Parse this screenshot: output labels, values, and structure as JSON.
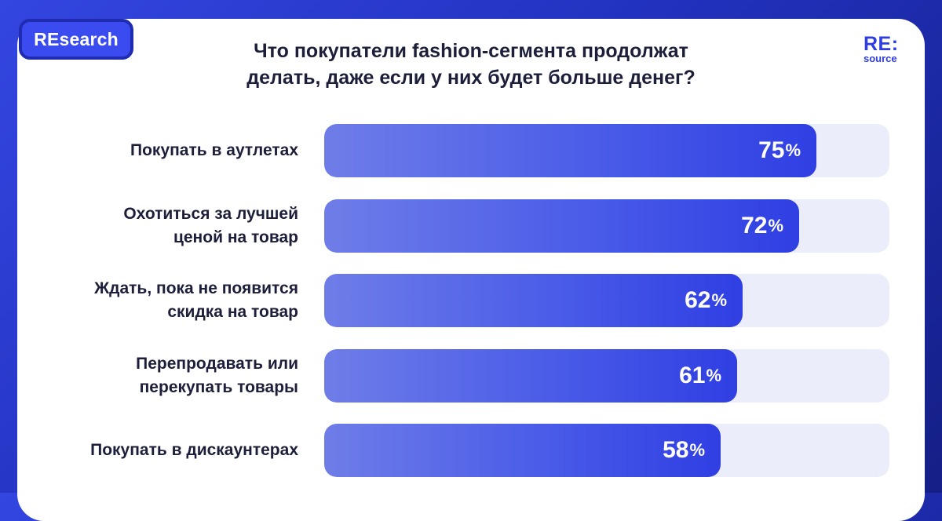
{
  "header": {
    "tag": "REsearch",
    "title_line1": "Что покупатели fashion-сегмента продолжат",
    "title_line2": "делать, даже если у них будет больше денег?",
    "logo_top": "RE:",
    "logo_bottom": "source"
  },
  "colors": {
    "background": "#2232c0",
    "bar_start": "#6f7de8",
    "bar_end": "#2f3fe3",
    "track": "#ebedfb",
    "text": "#1c1e3a",
    "accent": "#2d3de0"
  },
  "chart_data": {
    "type": "bar",
    "orientation": "horizontal",
    "categories": [
      [
        "Покупать в аутлетах"
      ],
      [
        "Охотиться за лучшей",
        "ценой на товар"
      ],
      [
        "Ждать, пока не появится",
        "скидка на товар"
      ],
      [
        "Перепродавать или",
        "перекупать товары"
      ],
      [
        "Покупать в дискаунтерах"
      ]
    ],
    "values": [
      75,
      72,
      62,
      61,
      58
    ],
    "value_suffix": "%",
    "xlim": [
      0,
      100
    ],
    "title": "Что покупатели fashion-сегмента продолжат делать, даже если у них будет больше денег?",
    "grid": false
  }
}
